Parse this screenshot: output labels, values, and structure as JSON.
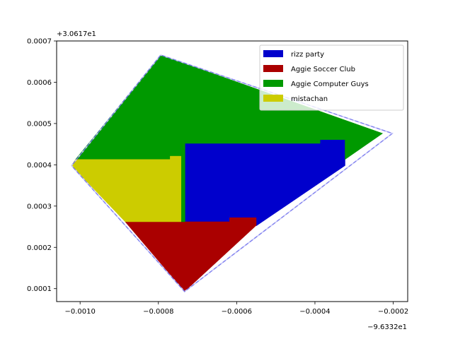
{
  "chart_data": {
    "type": "area",
    "title": "",
    "xlabel": "",
    "ylabel": "",
    "x_offset_text": "−9.6332e1",
    "y_offset_text": "+3.0617e1",
    "xlim": [
      -0.00106,
      -0.000163
    ],
    "ylim": [
      6.87e-05,
      0.0007
    ],
    "x_ticks": [
      {
        "value": -0.001,
        "label": "−0.0010"
      },
      {
        "value": -0.0008,
        "label": "−0.0008"
      },
      {
        "value": -0.0006,
        "label": "−0.0006"
      },
      {
        "value": -0.0004,
        "label": "−0.0004"
      },
      {
        "value": -0.0002,
        "label": "−0.0002"
      }
    ],
    "y_ticks": [
      {
        "value": 0.0001,
        "label": "0.0001"
      },
      {
        "value": 0.0002,
        "label": "0.0002"
      },
      {
        "value": 0.0003,
        "label": "0.0003"
      },
      {
        "value": 0.0004,
        "label": "0.0004"
      },
      {
        "value": 0.0005,
        "label": "0.0005"
      },
      {
        "value": 0.0006,
        "label": "0.0006"
      },
      {
        "value": 0.0007,
        "label": "0.0007"
      }
    ],
    "boundary": {
      "color": "#7777ee",
      "style": "dashed",
      "points": [
        [
          -0.001022,
          0.000398
        ],
        [
          -0.000794,
          0.000666
        ],
        [
          -0.000202,
          0.000476
        ],
        [
          -0.000733,
          9.3e-05
        ],
        [
          -0.001022,
          0.000398
        ]
      ]
    },
    "legend_position": "top-right",
    "series": [
      {
        "name": "rizz party",
        "color": "#0000cc",
        "polygon": [
          [
            -0.000732,
            0.000452
          ],
          [
            -0.000387,
            0.000452
          ],
          [
            -0.000387,
            0.000461
          ],
          [
            -0.000323,
            0.000461
          ],
          [
            -0.000323,
            0.000398
          ],
          [
            -0.00055,
            0.000252
          ],
          [
            -0.00055,
            0.000268
          ],
          [
            -0.000618,
            0.000268
          ],
          [
            -0.000618,
            0.000262
          ],
          [
            -0.000732,
            0.000262
          ]
        ]
      },
      {
        "name": "Aggie Soccer Club",
        "color": "#aa0000",
        "polygon": [
          [
            -0.000885,
            0.000262
          ],
          [
            -0.000618,
            0.000262
          ],
          [
            -0.000618,
            0.000272
          ],
          [
            -0.00055,
            0.000272
          ],
          [
            -0.00055,
            0.000253
          ],
          [
            -0.000733,
            9.3e-05
          ]
        ]
      },
      {
        "name": "Aggie Computer Guys",
        "color": "#009900",
        "polygon": [
          [
            -0.001012,
            0.000413
          ],
          [
            -0.000794,
            0.000666
          ],
          [
            -0.000227,
            0.000476
          ],
          [
            -0.000323,
            0.000413
          ],
          [
            -0.000323,
            0.000461
          ],
          [
            -0.000387,
            0.000461
          ],
          [
            -0.000387,
            0.000452
          ],
          [
            -0.000732,
            0.000452
          ],
          [
            -0.000732,
            0.000262
          ],
          [
            -0.000742,
            0.000262
          ],
          [
            -0.000742,
            0.000421
          ],
          [
            -0.00077,
            0.000421
          ],
          [
            -0.00077,
            0.000413
          ]
        ]
      },
      {
        "name": "mistachan",
        "color": "#cccc00",
        "polygon": [
          [
            -0.001012,
            0.000413
          ],
          [
            -0.00077,
            0.000413
          ],
          [
            -0.00077,
            0.000421
          ],
          [
            -0.000742,
            0.000421
          ],
          [
            -0.000742,
            0.000262
          ],
          [
            -0.000885,
            0.000262
          ],
          [
            -0.001022,
            0.000398
          ]
        ]
      }
    ]
  }
}
